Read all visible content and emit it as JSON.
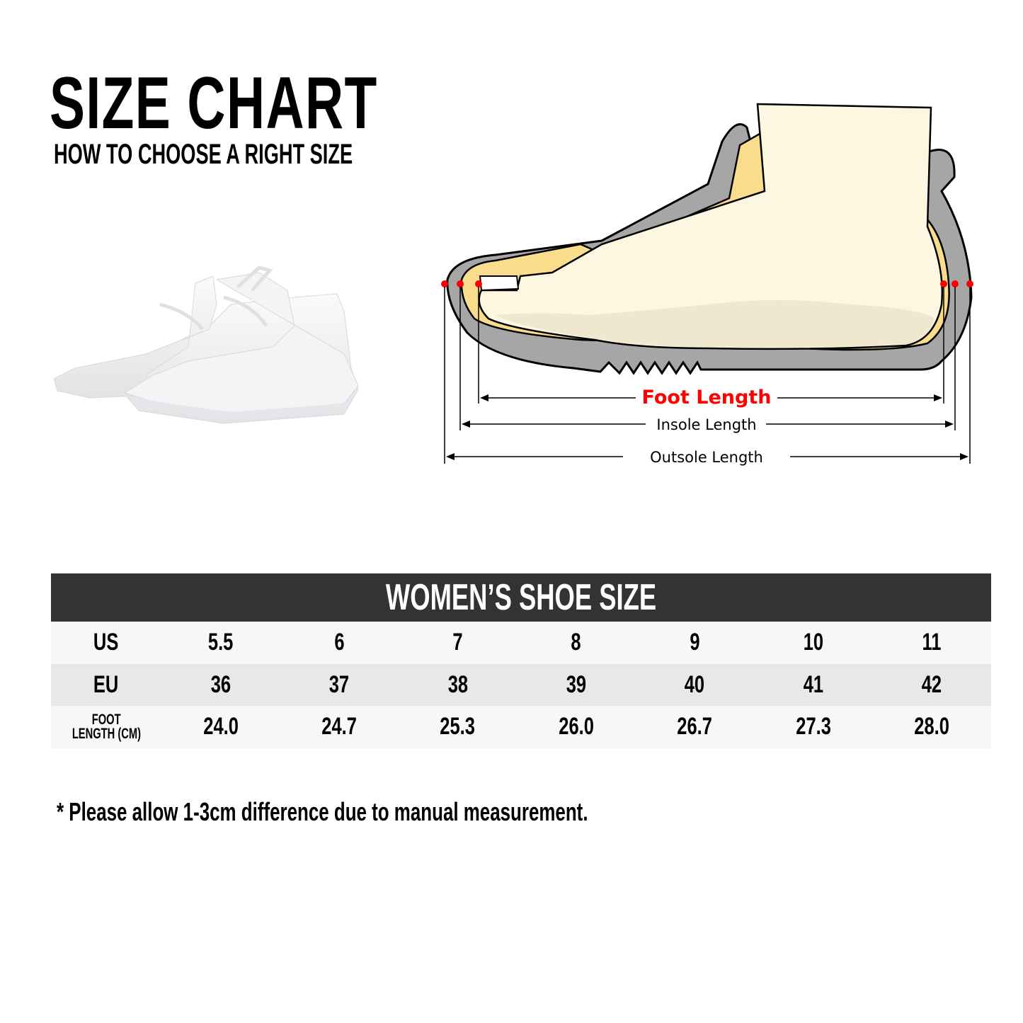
{
  "header": {
    "title": "SIZE CHART",
    "subtitle": "HOW TO CHOOSE A RIGHT SIZE"
  },
  "diagram": {
    "foot_length_label": "Foot Length",
    "insole_length_label": "Insole Length",
    "outsole_length_label": "Outsole Length",
    "colors": {
      "foot": "#fdf7e1",
      "insole": "#f9dc8c",
      "shoe": "#a6a6a6",
      "marker": "#ff0000",
      "foot_label": "#ff0000"
    }
  },
  "table": {
    "title": "WOMEN’S SHOE SIZE",
    "rows": [
      {
        "label": "US",
        "values": [
          "5.5",
          "6",
          "7",
          "8",
          "9",
          "10",
          "11"
        ]
      },
      {
        "label": "EU",
        "values": [
          "36",
          "37",
          "38",
          "39",
          "40",
          "41",
          "42"
        ]
      },
      {
        "label_line1": "FOOT",
        "label_line2": "LENGTH (CM)",
        "values": [
          "24.0",
          "24.7",
          "25.3",
          "26.0",
          "26.7",
          "27.3",
          "28.0"
        ]
      }
    ]
  },
  "note": "* Please allow 1-3cm difference due to manual measurement."
}
